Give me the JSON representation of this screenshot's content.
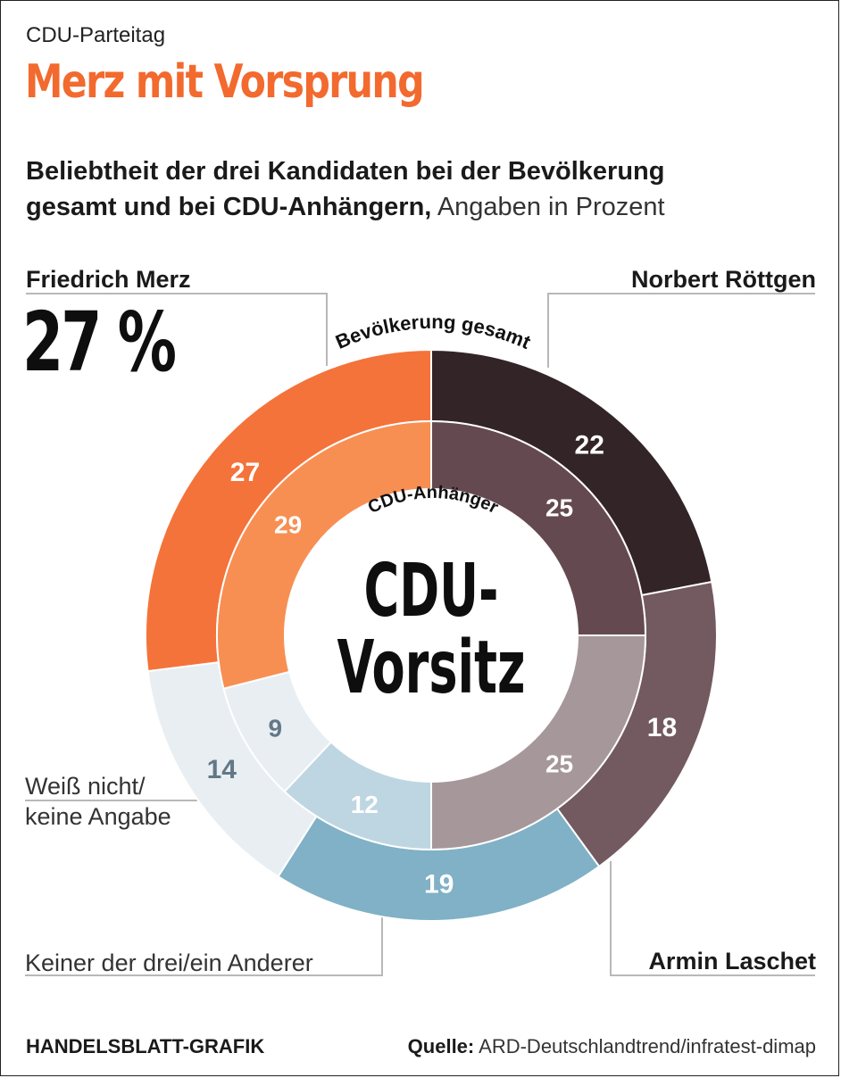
{
  "header": {
    "kicker": "CDU-Parteitag",
    "title": "Merz mit Vorsprung",
    "subtitle_bold_1": "Beliebtheit der drei Kandidaten bei der Bevölkerung",
    "subtitle_bold_2": "gesamt und bei CDU-Anhängern,",
    "subtitle_regular": "Angaben in Prozent"
  },
  "labels": {
    "merz": "Friedrich Merz",
    "merz_pct": "27 %",
    "roettgen": "Norbert Röttgen",
    "laschet": "Armin Laschet",
    "weiss_nicht_1": "Weiß nicht/",
    "weiss_nicht_2": "keine Angabe",
    "keiner": "Keiner der drei/ein Anderer"
  },
  "footer": {
    "brand": "HANDELSBLATT-GRAFIK",
    "source_label": "Quelle:",
    "source": "ARD-Deutschlandtrend/infratest-dimap"
  },
  "chart_data": {
    "type": "pie",
    "title": "CDU-Vorsitz",
    "center_label_1": "CDU-",
    "center_label_2": "Vorsitz",
    "ring_outer_label": "Bevölkerung gesamt",
    "ring_inner_label": "CDU-Anhänger",
    "categories": [
      "Norbert Röttgen",
      "Armin Laschet",
      "Keiner der drei/ein Anderer",
      "Weiß nicht/keine Angabe",
      "Friedrich Merz"
    ],
    "series": [
      {
        "name": "Bevölkerung gesamt",
        "values": [
          22,
          18,
          19,
          14,
          27
        ],
        "colors": [
          "#332428",
          "#725a60",
          "#80b1c6",
          "#e8eef1",
          "#f4733a"
        ],
        "label_colors": [
          "#ffffff",
          "#ffffff",
          "#ffffff",
          "#627888",
          "#ffffff"
        ]
      },
      {
        "name": "CDU-Anhänger",
        "values": [
          25,
          25,
          12,
          9,
          29
        ],
        "colors": [
          "#644a50",
          "#a6979b",
          "#bed6e2",
          "#e8eef1",
          "#f78f53"
        ],
        "label_colors": [
          "#ffffff",
          "#ffffff",
          "#ffffff",
          "#627888",
          "#ffffff"
        ]
      }
    ]
  }
}
